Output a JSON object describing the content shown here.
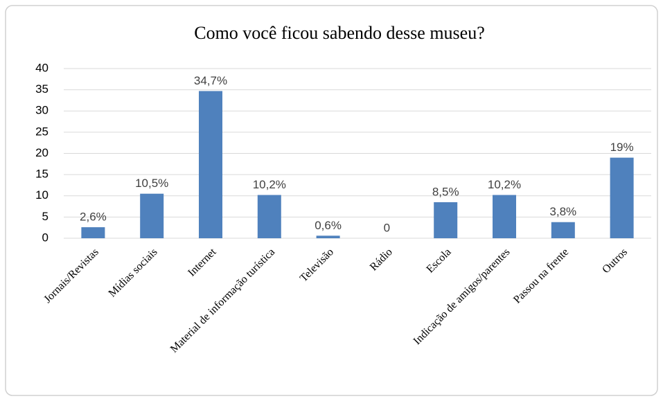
{
  "chart_data": {
    "type": "bar",
    "title": "Como você ficou sabendo desse museu?",
    "categories": [
      "Jornais/Revistas",
      "Mídias sociais",
      "Internet",
      "Material de informação turística",
      "Televisão",
      "Rádio",
      "Escola",
      "Indicação de amigos/parentes",
      "Passou na frente",
      "Outros"
    ],
    "values": [
      2.6,
      10.5,
      34.7,
      10.2,
      0.6,
      0,
      8.5,
      10.2,
      3.8,
      19
    ],
    "value_labels": [
      "2,6%",
      "10,5%",
      "34,7%",
      "10,2%",
      "0,6%",
      "0",
      "8,5%",
      "10,2%",
      "3,8%",
      "19%"
    ],
    "color": "#4f81bd",
    "ylim": [
      0,
      40
    ],
    "yticks": [
      0,
      5,
      10,
      15,
      20,
      25,
      30,
      35,
      40
    ],
    "grid": true
  }
}
